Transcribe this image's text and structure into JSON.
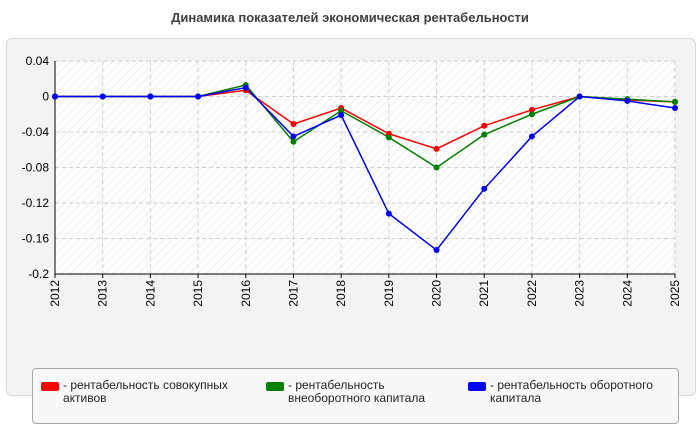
{
  "title": "Динамика показателей экономическая рентабельности",
  "chart_data": {
    "type": "line",
    "x": [
      "2012",
      "2013",
      "2014",
      "2015",
      "2016",
      "2017",
      "2018",
      "2019",
      "2020",
      "2021",
      "2022",
      "2023",
      "2024",
      "2025"
    ],
    "ylim": [
      -0.2,
      0.04
    ],
    "yticks": [
      0.04,
      0,
      -0.04,
      -0.08,
      -0.12,
      -0.16,
      -0.2
    ],
    "ytick_labels": [
      "0.04",
      "0",
      "-0.04",
      "-0.08",
      "-0.12",
      "-0.16",
      "-0.2"
    ],
    "grid": true,
    "legend_position": "bottom",
    "series": [
      {
        "name": "- рентабельность совокупных активов",
        "color": "#ff0000",
        "values": [
          0,
          0,
          0,
          0,
          0.007,
          -0.031,
          -0.013,
          -0.042,
          -0.059,
          -0.033,
          -0.015,
          0,
          -0.004,
          -0.006
        ]
      },
      {
        "name": "- рентабельность внеоборотного капитала",
        "color": "#008000",
        "values": [
          0,
          0,
          0,
          0,
          0.013,
          -0.051,
          -0.016,
          -0.046,
          -0.08,
          -0.043,
          -0.02,
          0,
          -0.003,
          -0.006
        ]
      },
      {
        "name": "- рентабельность оборотного капитала",
        "color": "#0000ff",
        "values": [
          0,
          0,
          0,
          0,
          0.01,
          -0.045,
          -0.021,
          -0.132,
          -0.173,
          -0.104,
          -0.045,
          0,
          -0.005,
          -0.013
        ]
      }
    ]
  }
}
